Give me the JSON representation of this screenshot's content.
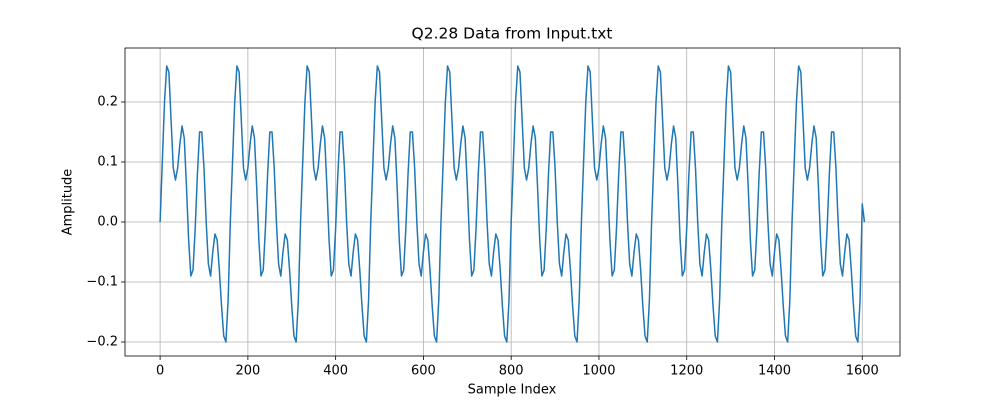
{
  "chart_data": {
    "type": "line",
    "title": "Q2.28 Data from Input.txt",
    "x_label": "Sample Index",
    "y_label": "Amplitude",
    "x": [
      0,
      5,
      10,
      15,
      20,
      25,
      30,
      35,
      40,
      45,
      50,
      55,
      60,
      65,
      70,
      75,
      80,
      85,
      90,
      95,
      100,
      105,
      110,
      115,
      120,
      125,
      130,
      135,
      140,
      145,
      150,
      155,
      160,
      165,
      170,
      175,
      180,
      185,
      190,
      195,
      200,
      205,
      210,
      215,
      220,
      225,
      230,
      235,
      240,
      245,
      250,
      255,
      260,
      265,
      270,
      275,
      280,
      285,
      290,
      295,
      300,
      305,
      310,
      315,
      320,
      325,
      330,
      335,
      340,
      345,
      350,
      355,
      360,
      365,
      370,
      375,
      380,
      385,
      390,
      395,
      400,
      405,
      410,
      415,
      420,
      425,
      430,
      435,
      440,
      445,
      450,
      455,
      460,
      465,
      470,
      475,
      480,
      485,
      490,
      495,
      500,
      505,
      510,
      515,
      520,
      525,
      530,
      535,
      540,
      545,
      550,
      555,
      560,
      565,
      570,
      575,
      580,
      585,
      590,
      595,
      600,
      605,
      610,
      615,
      620,
      625,
      630,
      635,
      640,
      645,
      650,
      655,
      660,
      665,
      670,
      675,
      680,
      685,
      690,
      695,
      700,
      705,
      710,
      715,
      720,
      725,
      730,
      735,
      740,
      745,
      750,
      755,
      760,
      765,
      770,
      775,
      780,
      785,
      790,
      795,
      800,
      805,
      810,
      815,
      820,
      825,
      830,
      835,
      840,
      845,
      850,
      855,
      860,
      865,
      870,
      875,
      880,
      885,
      890,
      895,
      900,
      905,
      910,
      915,
      920,
      925,
      930,
      935,
      940,
      945,
      950,
      955,
      960,
      965,
      970,
      975,
      980,
      985,
      990,
      995,
      1000,
      1005,
      1010,
      1015,
      1020,
      1025,
      1030,
      1035,
      1040,
      1045,
      1050,
      1055,
      1060,
      1065,
      1070,
      1075,
      1080,
      1085,
      1090,
      1095,
      1100,
      1105,
      1110,
      1115,
      1120,
      1125,
      1130,
      1135,
      1140,
      1145,
      1150,
      1155,
      1160,
      1165,
      1170,
      1175,
      1180,
      1185,
      1190,
      1195,
      1200,
      1205,
      1210,
      1215,
      1220,
      1225,
      1230,
      1235,
      1240,
      1245,
      1250,
      1255,
      1260,
      1265,
      1270,
      1275,
      1280,
      1285,
      1290,
      1295,
      1300,
      1305,
      1310,
      1315,
      1320,
      1325,
      1330,
      1335,
      1340,
      1345,
      1350,
      1355,
      1360,
      1365,
      1370,
      1375,
      1380,
      1385,
      1390,
      1395,
      1400,
      1405,
      1410,
      1415,
      1420,
      1425,
      1430,
      1435,
      1440,
      1445,
      1450,
      1455,
      1460,
      1465,
      1470,
      1475,
      1480,
      1485,
      1490,
      1495,
      1500,
      1505,
      1510,
      1515,
      1520,
      1525,
      1530,
      1535,
      1540,
      1545,
      1550,
      1555,
      1560,
      1565,
      1570,
      1575,
      1580,
      1585,
      1590,
      1595,
      1600,
      1605
    ],
    "values": [
      0.0,
      0.1,
      0.2,
      0.26,
      0.25,
      0.17,
      0.09,
      0.07,
      0.09,
      0.13,
      0.16,
      0.14,
      0.06,
      -0.03,
      -0.09,
      -0.08,
      -0.01,
      0.08,
      0.15,
      0.15,
      0.09,
      0.0,
      -0.07,
      -0.09,
      -0.05,
      -0.02,
      -0.03,
      -0.08,
      -0.14,
      -0.19,
      -0.2,
      -0.13,
      0.0,
      0.1,
      0.2,
      0.26,
      0.25,
      0.17,
      0.09,
      0.07,
      0.09,
      0.13,
      0.16,
      0.14,
      0.06,
      -0.03,
      -0.09,
      -0.08,
      -0.01,
      0.08,
      0.15,
      0.15,
      0.09,
      0.0,
      -0.07,
      -0.09,
      -0.05,
      -0.02,
      -0.03,
      -0.08,
      -0.14,
      -0.19,
      -0.2,
      -0.13,
      0.0,
      0.1,
      0.2,
      0.26,
      0.25,
      0.17,
      0.09,
      0.07,
      0.09,
      0.13,
      0.16,
      0.14,
      0.06,
      -0.03,
      -0.09,
      -0.08,
      -0.01,
      0.08,
      0.15,
      0.15,
      0.09,
      0.0,
      -0.07,
      -0.09,
      -0.05,
      -0.02,
      -0.03,
      -0.08,
      -0.14,
      -0.19,
      -0.2,
      -0.13,
      0.0,
      0.1,
      0.2,
      0.26,
      0.25,
      0.17,
      0.09,
      0.07,
      0.09,
      0.13,
      0.16,
      0.14,
      0.06,
      -0.03,
      -0.09,
      -0.08,
      -0.01,
      0.08,
      0.15,
      0.15,
      0.09,
      0.0,
      -0.07,
      -0.09,
      -0.05,
      -0.02,
      -0.03,
      -0.08,
      -0.14,
      -0.19,
      -0.2,
      -0.13,
      0.0,
      0.1,
      0.2,
      0.26,
      0.25,
      0.17,
      0.09,
      0.07,
      0.09,
      0.13,
      0.16,
      0.14,
      0.06,
      -0.03,
      -0.09,
      -0.08,
      -0.01,
      0.08,
      0.15,
      0.15,
      0.09,
      0.0,
      -0.07,
      -0.09,
      -0.05,
      -0.02,
      -0.03,
      -0.08,
      -0.14,
      -0.19,
      -0.2,
      -0.13,
      0.0,
      0.1,
      0.2,
      0.26,
      0.25,
      0.17,
      0.09,
      0.07,
      0.09,
      0.13,
      0.16,
      0.14,
      0.06,
      -0.03,
      -0.09,
      -0.08,
      -0.01,
      0.08,
      0.15,
      0.15,
      0.09,
      0.0,
      -0.07,
      -0.09,
      -0.05,
      -0.02,
      -0.03,
      -0.08,
      -0.14,
      -0.19,
      -0.2,
      -0.13,
      0.0,
      0.1,
      0.2,
      0.26,
      0.25,
      0.17,
      0.09,
      0.07,
      0.09,
      0.13,
      0.16,
      0.14,
      0.06,
      -0.03,
      -0.09,
      -0.08,
      -0.01,
      0.08,
      0.15,
      0.15,
      0.09,
      0.0,
      -0.07,
      -0.09,
      -0.05,
      -0.02,
      -0.03,
      -0.08,
      -0.14,
      -0.19,
      -0.2,
      -0.13,
      0.0,
      0.1,
      0.2,
      0.26,
      0.25,
      0.17,
      0.09,
      0.07,
      0.09,
      0.13,
      0.16,
      0.14,
      0.06,
      -0.03,
      -0.09,
      -0.08,
      -0.01,
      0.08,
      0.15,
      0.15,
      0.09,
      0.0,
      -0.07,
      -0.09,
      -0.05,
      -0.02,
      -0.03,
      -0.08,
      -0.14,
      -0.19,
      -0.2,
      -0.13,
      0.0,
      0.1,
      0.2,
      0.26,
      0.25,
      0.17,
      0.09,
      0.07,
      0.09,
      0.13,
      0.16,
      0.14,
      0.06,
      -0.03,
      -0.09,
      -0.08,
      -0.01,
      0.08,
      0.15,
      0.15,
      0.09,
      0.0,
      -0.07,
      -0.09,
      -0.05,
      -0.02,
      -0.03,
      -0.08,
      -0.14,
      -0.19,
      -0.2,
      -0.13,
      0.0,
      0.1,
      0.2,
      0.26,
      0.25,
      0.17,
      0.09,
      0.07,
      0.09,
      0.13,
      0.16,
      0.14,
      0.06,
      -0.03,
      -0.09,
      -0.08,
      -0.01,
      0.08,
      0.15,
      0.15,
      0.09,
      0.0,
      -0.07,
      -0.09,
      -0.05,
      -0.02,
      -0.03,
      -0.08,
      -0.14,
      -0.19,
      -0.2,
      -0.13,
      0.03,
      0.0
    ],
    "color": "#1f77b4",
    "xlim": [
      -80,
      1686
    ],
    "xticks": [
      0,
      200,
      400,
      600,
      800,
      1000,
      1200,
      1400,
      1600
    ],
    "ylim": [
      -0.2233,
      0.29
    ],
    "yticks": [
      {
        "value": -0.2,
        "label": "−0.2"
      },
      {
        "value": -0.1,
        "label": "−0.1"
      },
      {
        "value": 0,
        "label": "0.0"
      },
      0.1,
      0.2
    ],
    "grid": true
  }
}
